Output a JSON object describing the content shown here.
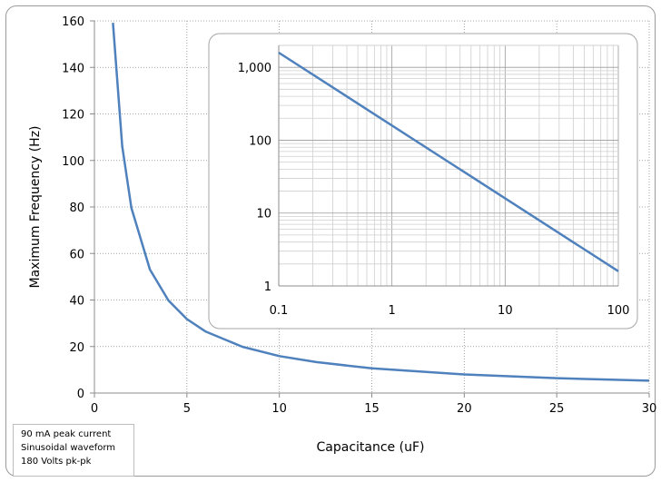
{
  "chart_data": [
    {
      "type": "line",
      "xlabel": "Capacitance (uF)",
      "ylabel": "Maximum Frequency (Hz)",
      "xlim": [
        0,
        30
      ],
      "ylim": [
        0,
        160
      ],
      "x_ticks": [
        "0",
        "5",
        "10",
        "15",
        "20",
        "25",
        "30"
      ],
      "y_ticks": [
        "0",
        "20",
        "40",
        "60",
        "80",
        "100",
        "120",
        "140",
        "160"
      ],
      "grid": true,
      "series": [
        {
          "color": "#4f81bd",
          "x": [
            1,
            1.5,
            2,
            3,
            4,
            5,
            6,
            8,
            10,
            12,
            15,
            20,
            25,
            30
          ],
          "y": [
            159.2,
            106.1,
            79.6,
            53.1,
            39.8,
            31.8,
            26.5,
            19.9,
            15.9,
            13.3,
            10.6,
            8.0,
            6.4,
            5.3
          ]
        }
      ]
    },
    {
      "type": "line",
      "x_scale": "log",
      "y_scale": "log",
      "xlim": [
        0.1,
        100
      ],
      "ylim": [
        1,
        2000
      ],
      "x_ticks": [
        "0.1",
        "1",
        "10",
        "100"
      ],
      "y_ticks": [
        "1",
        "10",
        "100",
        "1,000"
      ],
      "grid": true,
      "series": [
        {
          "color": "#4f81bd",
          "x": [
            0.1,
            100
          ],
          "y": [
            1592,
            1.59
          ]
        }
      ]
    }
  ],
  "notes": [
    "90 mA peak current",
    "Sinusoidal waveform",
    "180 Volts pk-pk"
  ]
}
